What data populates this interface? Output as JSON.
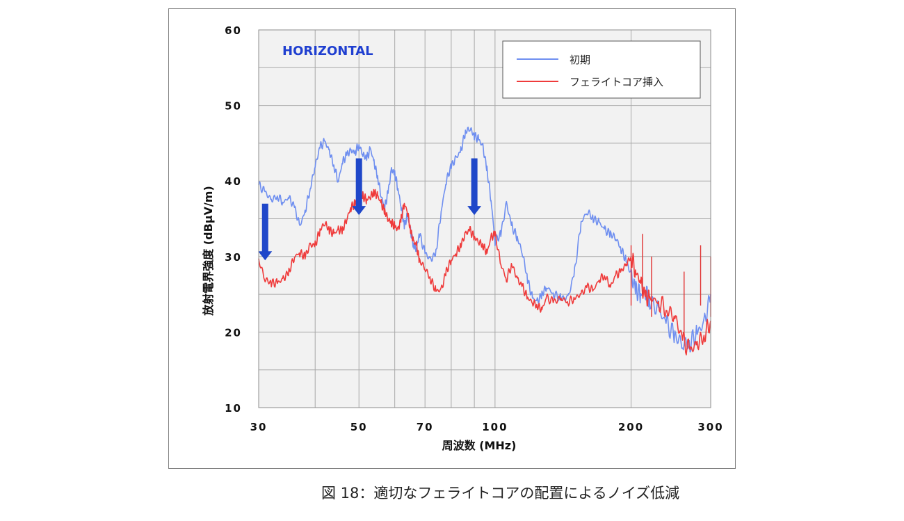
{
  "chart_data": {
    "type": "line",
    "title": "",
    "annotation": "HORIZONTAL",
    "xlabel": "周波数 (MHz)",
    "ylabel": "放射電界強度 (dBµV/m)",
    "x_scale": "log",
    "xlim": [
      30,
      300
    ],
    "ylim": [
      10,
      60
    ],
    "x_ticks": [
      30,
      50,
      70,
      100,
      200,
      300
    ],
    "y_ticks": [
      10,
      20,
      30,
      40,
      50,
      60
    ],
    "grid": true,
    "legend_position": "top-right",
    "series": [
      {
        "name": "初期",
        "color": "#6f8ff0",
        "x": [
          30,
          31,
          32,
          33,
          34,
          35,
          36,
          37,
          38,
          39,
          40,
          41,
          42,
          43,
          44,
          45,
          46,
          47,
          48,
          49,
          50,
          51,
          52,
          53,
          54,
          55,
          56,
          57,
          58,
          59,
          60,
          61,
          62,
          63,
          64,
          65,
          66,
          67,
          68,
          70,
          72,
          74,
          76,
          78,
          80,
          82,
          84,
          86,
          88,
          90,
          92,
          94,
          96,
          98,
          100,
          103,
          106,
          109,
          112,
          115,
          118,
          121,
          124,
          127,
          130,
          135,
          140,
          145,
          150,
          155,
          160,
          165,
          170,
          175,
          180,
          185,
          190,
          195,
          200,
          205,
          210,
          215,
          220,
          230,
          240,
          250,
          260,
          270,
          280,
          290,
          300
        ],
        "y": [
          39.5,
          38.5,
          37.5,
          38.0,
          37.2,
          37.8,
          36.5,
          34.0,
          36.0,
          39.0,
          42.0,
          44.5,
          45.2,
          44.0,
          42.0,
          40.0,
          42.5,
          43.5,
          44.0,
          43.8,
          44.8,
          43.5,
          43.0,
          44.2,
          42.5,
          40.5,
          38.0,
          36.5,
          38.5,
          41.5,
          41.0,
          39.0,
          36.5,
          34.0,
          35.5,
          33.5,
          31.5,
          31.0,
          33.0,
          30.5,
          29.5,
          30.5,
          36.0,
          40.0,
          42.0,
          43.0,
          44.0,
          46.5,
          47.0,
          46.0,
          45.5,
          44.5,
          41.5,
          37.5,
          32.0,
          33.0,
          37.0,
          34.0,
          32.5,
          30.5,
          27.0,
          24.5,
          24.0,
          25.0,
          26.0,
          25.0,
          24.5,
          24.5,
          28.0,
          34.5,
          36.0,
          35.0,
          34.5,
          33.5,
          33.0,
          32.5,
          31.0,
          29.5,
          27.5,
          25.5,
          25.0,
          25.5,
          24.0,
          23.0,
          21.0,
          19.5,
          18.5,
          18.5,
          20.0,
          21.0,
          25.0
        ]
      },
      {
        "name": "フェライトコア挿入",
        "color": "#ef3b3b",
        "x": [
          30,
          31,
          32,
          33,
          34,
          35,
          36,
          37,
          38,
          39,
          40,
          41,
          42,
          43,
          44,
          45,
          46,
          47,
          48,
          49,
          50,
          51,
          52,
          53,
          54,
          55,
          56,
          57,
          58,
          59,
          60,
          61,
          62,
          63,
          64,
          65,
          66,
          67,
          68,
          70,
          72,
          74,
          76,
          78,
          80,
          82,
          84,
          86,
          88,
          90,
          92,
          94,
          96,
          98,
          100,
          103,
          106,
          109,
          112,
          115,
          118,
          121,
          124,
          127,
          130,
          135,
          140,
          145,
          150,
          155,
          160,
          165,
          170,
          175,
          180,
          185,
          190,
          195,
          200,
          205,
          210,
          215,
          220,
          230,
          240,
          250,
          260,
          270,
          280,
          290,
          300
        ],
        "y": [
          29.5,
          27.0,
          26.5,
          26.5,
          27.0,
          28.0,
          30.0,
          30.5,
          30.0,
          31.5,
          31.5,
          33.5,
          34.5,
          33.5,
          33.0,
          33.5,
          33.5,
          35.0,
          36.5,
          37.0,
          37.5,
          38.0,
          37.5,
          38.0,
          38.5,
          38.0,
          37.0,
          36.0,
          35.0,
          34.5,
          34.0,
          33.5,
          35.0,
          37.0,
          36.0,
          33.5,
          32.0,
          31.5,
          29.5,
          28.5,
          27.0,
          25.5,
          25.5,
          28.0,
          29.5,
          30.5,
          31.5,
          33.0,
          33.5,
          32.5,
          32.0,
          31.5,
          30.5,
          32.5,
          33.0,
          29.0,
          27.0,
          29.0,
          27.0,
          26.0,
          24.5,
          24.0,
          23.5,
          23.0,
          24.5,
          24.0,
          24.5,
          24.0,
          24.5,
          25.0,
          26.0,
          25.5,
          27.0,
          27.5,
          26.0,
          27.5,
          28.0,
          29.0,
          30.0,
          28.0,
          26.5,
          24.5,
          24.5,
          24.0,
          23.0,
          22.0,
          19.0,
          17.5,
          18.5,
          19.5,
          21.5
        ]
      }
    ]
  },
  "caption": "図 18：適切なフェライトコアの配置によるノイズ低減"
}
